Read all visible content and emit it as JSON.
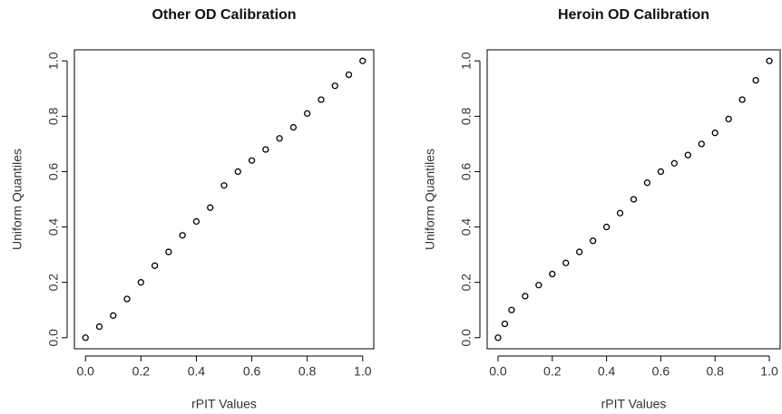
{
  "chart_data": [
    {
      "type": "scatter",
      "title": "Other OD Calibration",
      "xlabel": "rPIT Values",
      "ylabel": "Uniform Quantiles",
      "x": [
        0,
        0.05,
        0.1,
        0.15,
        0.2,
        0.25,
        0.3,
        0.35,
        0.4,
        0.45,
        0.5,
        0.55,
        0.6,
        0.65,
        0.7,
        0.75,
        0.8,
        0.85,
        0.9,
        0.95,
        1.0
      ],
      "values": [
        0,
        0.04,
        0.08,
        0.14,
        0.2,
        0.26,
        0.31,
        0.37,
        0.42,
        0.47,
        0.55,
        0.6,
        0.64,
        0.68,
        0.72,
        0.76,
        0.81,
        0.86,
        0.91,
        0.95,
        1.0
      ],
      "color": "#000000",
      "xlim": [
        -0.04,
        1.04
      ],
      "ylim": [
        -0.04,
        1.04
      ],
      "xticks": [
        {
          "value": 0,
          "label": "0.0"
        },
        0.2,
        0.4,
        0.6,
        0.8,
        {
          "value": 1,
          "label": "1.0"
        }
      ],
      "yticks": [
        {
          "value": 0,
          "label": "0.0"
        },
        0.2,
        0.4,
        0.6,
        0.8,
        {
          "value": 1,
          "label": "1.0"
        }
      ]
    },
    {
      "type": "scatter",
      "title": "Heroin OD Calibration",
      "xlabel": "rPIT Values",
      "ylabel": "Uniform Quantiles",
      "x": [
        0,
        0.025,
        0.05,
        0.1,
        0.15,
        0.2,
        0.25,
        0.3,
        0.35,
        0.4,
        0.45,
        0.5,
        0.55,
        0.6,
        0.65,
        0.7,
        0.75,
        0.8,
        0.85,
        0.9,
        0.95,
        1.0
      ],
      "values": [
        0,
        0.05,
        0.1,
        0.15,
        0.19,
        0.23,
        0.27,
        0.31,
        0.35,
        0.4,
        0.45,
        0.5,
        0.56,
        0.6,
        0.63,
        0.66,
        0.7,
        0.74,
        0.79,
        0.86,
        0.93,
        1.0
      ],
      "color": "#000000",
      "xlim": [
        -0.04,
        1.04
      ],
      "ylim": [
        -0.04,
        1.04
      ],
      "xticks": [
        {
          "value": 0,
          "label": "0.0"
        },
        0.2,
        0.4,
        0.6,
        0.8,
        {
          "value": 1,
          "label": "1.0"
        }
      ],
      "yticks": [
        {
          "value": 0,
          "label": "0.0"
        },
        0.2,
        0.4,
        0.6,
        0.8,
        {
          "value": 1,
          "label": "1.0"
        }
      ]
    }
  ]
}
